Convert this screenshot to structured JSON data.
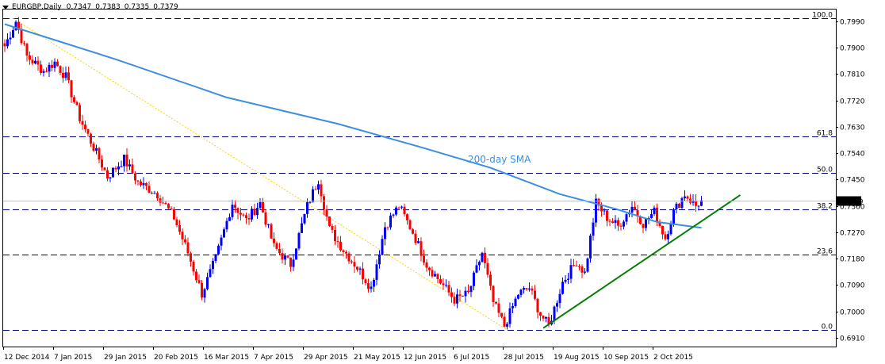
{
  "header": {
    "symbol": "EURGBP,Daily",
    "open": "0.7347",
    "high": "0.7383",
    "low": "0.7335",
    "close": "0.7379"
  },
  "colors": {
    "bull": "#0000ff",
    "bear": "#ff0000",
    "sma": "#3c8fe0",
    "fib": "#000080",
    "trend": "#008000",
    "fibDiag": "#ffd000",
    "priceLine": "#c0c0c0",
    "priceBox": "#000000"
  },
  "chart_data": {
    "type": "candlestick",
    "title": "",
    "ylim": [
      0.688,
      0.803
    ],
    "y_ticks": [
      "0.7990",
      "0.7900",
      "0.7810",
      "0.7720",
      "0.7630",
      "0.7540",
      "0.7450",
      "0.7360",
      "0.7270",
      "0.7180",
      "0.7090",
      "0.7000",
      "0.6910"
    ],
    "x_ticks": [
      "12 Dec 2014",
      "7 Jan 2015",
      "29 Jan 2015",
      "20 Feb 2015",
      "16 Mar 2015",
      "7 Apr 2015",
      "29 Apr 2015",
      "21 May 2015",
      "12 Jun 2015",
      "6 Jul 2015",
      "28 Jul 2015",
      "19 Aug 2015",
      "10 Sep 2015",
      "2 Oct 2015"
    ],
    "current_price": "0.7379",
    "fib_levels": [
      {
        "label": "100.0",
        "value": 0.8
      },
      {
        "label": "61.8",
        "value": 0.7596
      },
      {
        "label": "50.0",
        "value": 0.7472
      },
      {
        "label": "38.2",
        "value": 0.7348
      },
      {
        "label": "23.6",
        "value": 0.7194
      },
      {
        "label": "0.0",
        "value": 0.6937
      }
    ],
    "annotations": [
      "200-day SMA"
    ],
    "anchors": [
      {
        "i": 0,
        "v": 0.7905
      },
      {
        "i": 4,
        "v": 0.799
      },
      {
        "i": 8,
        "v": 0.787
      },
      {
        "i": 14,
        "v": 0.782
      },
      {
        "i": 18,
        "v": 0.785
      },
      {
        "i": 22,
        "v": 0.78
      },
      {
        "i": 27,
        "v": 0.766
      },
      {
        "i": 32,
        "v": 0.756
      },
      {
        "i": 37,
        "v": 0.746
      },
      {
        "i": 43,
        "v": 0.752
      },
      {
        "i": 48,
        "v": 0.744
      },
      {
        "i": 55,
        "v": 0.74
      },
      {
        "i": 61,
        "v": 0.732
      },
      {
        "i": 66,
        "v": 0.72
      },
      {
        "i": 71,
        "v": 0.706
      },
      {
        "i": 76,
        "v": 0.718
      },
      {
        "i": 82,
        "v": 0.737
      },
      {
        "i": 87,
        "v": 0.731
      },
      {
        "i": 92,
        "v": 0.737
      },
      {
        "i": 97,
        "v": 0.722
      },
      {
        "i": 103,
        "v": 0.716
      },
      {
        "i": 109,
        "v": 0.736
      },
      {
        "i": 113,
        "v": 0.745
      },
      {
        "i": 117,
        "v": 0.728
      },
      {
        "i": 122,
        "v": 0.721
      },
      {
        "i": 127,
        "v": 0.715
      },
      {
        "i": 132,
        "v": 0.708
      },
      {
        "i": 137,
        "v": 0.729
      },
      {
        "i": 142,
        "v": 0.736
      },
      {
        "i": 147,
        "v": 0.727
      },
      {
        "i": 152,
        "v": 0.716
      },
      {
        "i": 157,
        "v": 0.71
      },
      {
        "i": 162,
        "v": 0.704
      },
      {
        "i": 167,
        "v": 0.706
      },
      {
        "i": 172,
        "v": 0.72
      },
      {
        "i": 176,
        "v": 0.703
      },
      {
        "i": 180,
        "v": 0.695
      },
      {
        "i": 185,
        "v": 0.706
      },
      {
        "i": 189,
        "v": 0.708
      },
      {
        "i": 193,
        "v": 0.699
      },
      {
        "i": 196,
        "v": 0.695
      },
      {
        "i": 201,
        "v": 0.71
      },
      {
        "i": 206,
        "v": 0.717
      },
      {
        "i": 209,
        "v": 0.713
      },
      {
        "i": 213,
        "v": 0.737
      },
      {
        "i": 217,
        "v": 0.732
      },
      {
        "i": 221,
        "v": 0.729
      },
      {
        "i": 226,
        "v": 0.736
      },
      {
        "i": 230,
        "v": 0.73
      },
      {
        "i": 234,
        "v": 0.734
      },
      {
        "i": 238,
        "v": 0.725
      },
      {
        "i": 241,
        "v": 0.734
      },
      {
        "i": 245,
        "v": 0.74
      },
      {
        "i": 249,
        "v": 0.736
      },
      {
        "i": 251,
        "v": 0.7379
      }
    ],
    "sma_path": [
      {
        "i": 0,
        "v": 0.798
      },
      {
        "i": 40,
        "v": 0.786
      },
      {
        "i": 80,
        "v": 0.773
      },
      {
        "i": 120,
        "v": 0.764
      },
      {
        "i": 150,
        "v": 0.756
      },
      {
        "i": 175,
        "v": 0.749
      },
      {
        "i": 200,
        "v": 0.74
      },
      {
        "i": 220,
        "v": 0.735
      },
      {
        "i": 235,
        "v": 0.7305
      },
      {
        "i": 251,
        "v": 0.7285
      }
    ],
    "trendline": [
      {
        "i": 194,
        "v": 0.6943
      },
      {
        "i": 265,
        "v": 0.7397
      }
    ],
    "fib_diagonal": [
      {
        "i": 3,
        "v": 0.8
      },
      {
        "i": 181,
        "v": 0.6937
      }
    ],
    "total_bars": 252
  }
}
